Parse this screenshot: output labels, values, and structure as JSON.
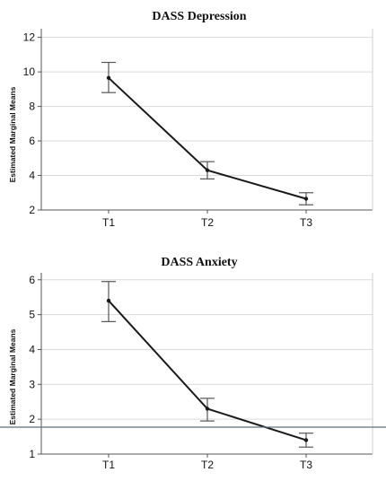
{
  "chart_data": [
    {
      "type": "line",
      "title": "DASS Depression",
      "ylabel": "Estimated Marginal Means",
      "xlabel": "",
      "categories": [
        "T1",
        "T2",
        "T3"
      ],
      "ylim": [
        2,
        12.5
      ],
      "yticks": [
        2,
        4,
        6,
        8,
        10,
        12
      ],
      "grid": true,
      "series": [
        {
          "values": [
            9.65,
            4.3,
            2.65
          ],
          "err_low": [
            8.8,
            3.8,
            2.3
          ],
          "err_high": [
            10.55,
            4.8,
            3.0
          ]
        }
      ]
    },
    {
      "type": "line",
      "title": "DASS Anxiety",
      "ylabel": "Estimated Marginal Means",
      "xlabel": "",
      "categories": [
        "T1",
        "T2",
        "T3"
      ],
      "ylim": [
        1,
        6.2
      ],
      "yticks": [
        1,
        2,
        3,
        4,
        5,
        6
      ],
      "grid": true,
      "series": [
        {
          "values": [
            5.4,
            2.3,
            1.4
          ],
          "err_low": [
            4.8,
            1.95,
            1.2
          ],
          "err_high": [
            5.95,
            2.6,
            1.6
          ]
        }
      ]
    }
  ]
}
